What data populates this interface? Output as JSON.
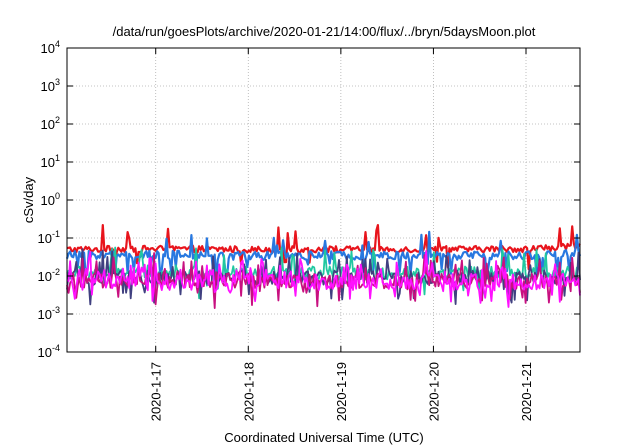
{
  "chart_data": {
    "type": "line",
    "title": "/data/run/goesPlots/archive/2020-01-21/14:00/flux/../bryn/5daysMoon.plot",
    "xlabel": "Coordinated Universal Time (UTC)",
    "ylabel": "cSv/day",
    "yscale": "log",
    "ylim": [
      0.0001,
      10000
    ],
    "xlim": [
      "2020-01-16 01:00",
      "2020-01-21 14:00"
    ],
    "grid": true,
    "x_ticks": [
      "2020-1-17",
      "2020-1-18",
      "2020-1-19",
      "2020-1-20",
      "2020-1-21"
    ],
    "y_ticks": [
      {
        "base": "10",
        "exp": "-4"
      },
      {
        "base": "10",
        "exp": "-3"
      },
      {
        "base": "10",
        "exp": "-2"
      },
      {
        "base": "10",
        "exp": "-1"
      },
      {
        "base": "10",
        "exp": "0"
      },
      {
        "base": "10",
        "exp": "1"
      },
      {
        "base": "10",
        "exp": "2"
      },
      {
        "base": "10",
        "exp": "3"
      },
      {
        "base": "10",
        "exp": "4"
      }
    ],
    "series": [
      {
        "color": "#e8141c",
        "x": [
          "2020-01-16 01:00",
          "2020-01-17 01:00",
          "2020-01-18 01:00",
          "2020-01-19 01:00",
          "2020-01-20 01:00",
          "2020-01-21 01:00",
          "2020-01-21 14:00"
        ],
        "values": [
          0.05,
          0.052,
          0.05,
          0.05,
          0.05,
          0.052,
          0.06
        ]
      },
      {
        "color": "#2878e0",
        "x": [
          "2020-01-16 01:00",
          "2020-01-17 01:00",
          "2020-01-18 01:00",
          "2020-01-19 01:00",
          "2020-01-20 01:00",
          "2020-01-21 01:00",
          "2020-01-21 14:00"
        ],
        "values": [
          0.035,
          0.036,
          0.034,
          0.035,
          0.034,
          0.035,
          0.04
        ]
      },
      {
        "color": "#20c8a0",
        "x": [
          "2020-01-16 01:00",
          "2020-01-17 01:00",
          "2020-01-18 01:00",
          "2020-01-19 01:00",
          "2020-01-20 01:00",
          "2020-01-21 01:00",
          "2020-01-21 14:00"
        ],
        "values": [
          0.012,
          0.013,
          0.012,
          0.012,
          0.012,
          0.012,
          0.013
        ]
      },
      {
        "color": "#404080",
        "x": [
          "2020-01-16 01:00",
          "2020-01-17 01:00",
          "2020-01-18 01:00",
          "2020-01-19 01:00",
          "2020-01-20 01:00",
          "2020-01-21 01:00",
          "2020-01-21 14:00"
        ],
        "values": [
          0.009,
          0.009,
          0.009,
          0.009,
          0.009,
          0.009,
          0.009
        ]
      },
      {
        "color": "#c81080",
        "x": [
          "2020-01-16 01:00",
          "2020-01-17 01:00",
          "2020-01-18 01:00",
          "2020-01-19 01:00",
          "2020-01-20 01:00",
          "2020-01-21 01:00",
          "2020-01-21 14:00"
        ],
        "values": [
          0.0075,
          0.0075,
          0.0075,
          0.0075,
          0.0075,
          0.0075,
          0.0078
        ]
      },
      {
        "color": "#ff10ff",
        "x": [
          "2020-01-16 01:00",
          "2020-01-17 01:00",
          "2020-01-18 01:00",
          "2020-01-19 01:00",
          "2020-01-20 01:00",
          "2020-01-21 01:00",
          "2020-01-21 14:00"
        ],
        "values": [
          0.007,
          0.007,
          0.007,
          0.007,
          0.007,
          0.007,
          0.007
        ]
      }
    ]
  }
}
